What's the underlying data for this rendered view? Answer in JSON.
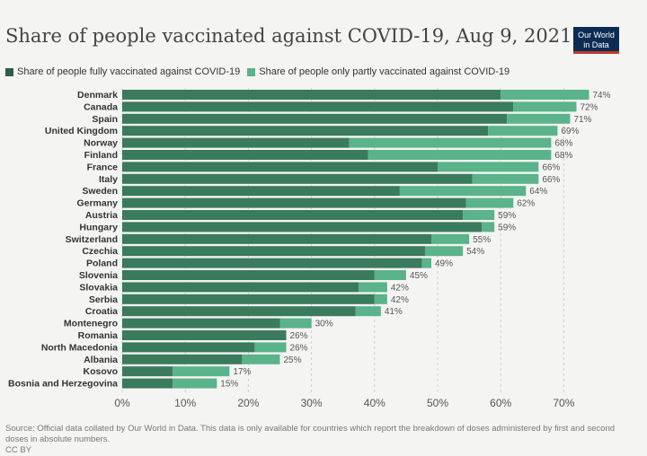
{
  "title": "Share of people vaccinated against COVID-19, Aug 9, 2021",
  "logo": {
    "line1": "Our World",
    "line2": "in Data"
  },
  "source_text": "Source: Official data collated by Our World in Data. This data is only available for countries which report the breakdown of doses administered by first and second doses in absolute numbers.",
  "license": "CC BY",
  "colors": {
    "full": "#3a7a5d",
    "partial": "#5ab38a",
    "grid": "#cfcfcf"
  },
  "chart_data": {
    "type": "bar",
    "orientation": "horizontal",
    "stacked": true,
    "categories": [
      "Denmark",
      "Canada",
      "Spain",
      "United Kingdom",
      "Norway",
      "Finland",
      "France",
      "Italy",
      "Sweden",
      "Germany",
      "Austria",
      "Hungary",
      "Switzerland",
      "Czechia",
      "Poland",
      "Slovenia",
      "Slovakia",
      "Serbia",
      "Croatia",
      "Montenegro",
      "Romania",
      "North Macedonia",
      "Albania",
      "Kosovo",
      "Bosnia and Herzegovina"
    ],
    "series": [
      {
        "name": "Share of people fully vaccinated against COVID-19",
        "values": [
          60,
          62,
          61,
          58,
          36,
          39,
          50,
          55.5,
          44,
          54.5,
          54,
          57,
          49,
          48,
          47.5,
          40,
          37.5,
          40,
          37,
          25,
          26,
          21,
          19,
          8,
          8
        ]
      },
      {
        "name": "Share of people only partly vaccinated against COVID-19",
        "values": [
          14,
          10,
          10,
          11,
          32,
          29,
          16,
          10.5,
          20,
          7.5,
          5,
          2,
          6,
          6,
          1.5,
          5,
          4.5,
          2,
          4,
          5,
          0,
          5,
          6,
          9,
          7
        ]
      }
    ],
    "total_labels": [
      "74%",
      "72%",
      "71%",
      "69%",
      "68%",
      "68%",
      "66%",
      "66%",
      "64%",
      "62%",
      "59%",
      "59%",
      "55%",
      "54%",
      "49%",
      "45%",
      "42%",
      "42%",
      "41%",
      "30%",
      "26%",
      "26%",
      "25%",
      "17%",
      "15%"
    ],
    "xticks": [
      "0%",
      "10%",
      "20%",
      "30%",
      "40%",
      "50%",
      "60%",
      "70%"
    ],
    "xlim": [
      0,
      74
    ],
    "grid": true,
    "legend_position": "top-left"
  }
}
